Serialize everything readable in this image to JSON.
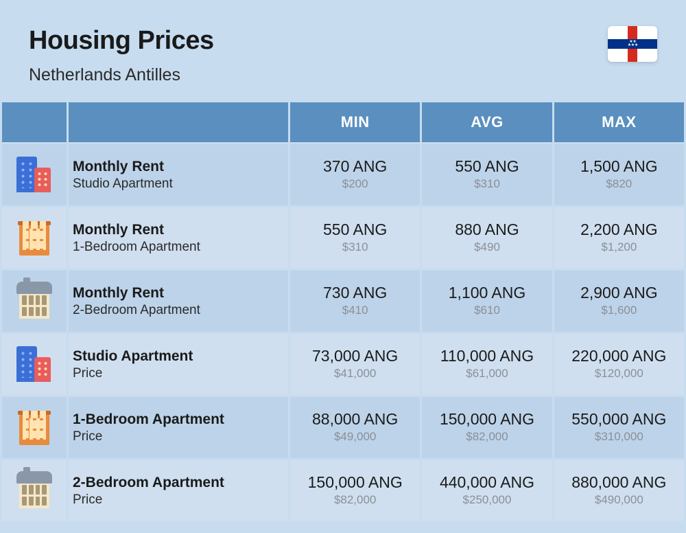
{
  "title": "Housing Prices",
  "subtitle": "Netherlands Antilles",
  "flag": {
    "top_bottom": "#ffffff",
    "band_v": "#d52b1e",
    "band_h": "#003087"
  },
  "columns": {
    "min": "MIN",
    "avg": "AVG",
    "max": "MAX"
  },
  "header_bg": "#5a8fbf",
  "row_bg_a": "#bdd3e9",
  "row_bg_b": "#cfdfef",
  "currency_main": "ANG",
  "currency_sub_prefix": "$",
  "rows": [
    {
      "icon": "tall",
      "title": "Monthly Rent",
      "sub": "Studio Apartment",
      "min": {
        "main": "370 ANG",
        "sub": "$200"
      },
      "avg": {
        "main": "550 ANG",
        "sub": "$310"
      },
      "max": {
        "main": "1,500 ANG",
        "sub": "$820"
      }
    },
    {
      "icon": "brick",
      "title": "Monthly Rent",
      "sub": "1-Bedroom Apartment",
      "min": {
        "main": "550 ANG",
        "sub": "$310"
      },
      "avg": {
        "main": "880 ANG",
        "sub": "$490"
      },
      "max": {
        "main": "2,200 ANG",
        "sub": "$1,200"
      }
    },
    {
      "icon": "house",
      "title": "Monthly Rent",
      "sub": "2-Bedroom Apartment",
      "min": {
        "main": "730 ANG",
        "sub": "$410"
      },
      "avg": {
        "main": "1,100 ANG",
        "sub": "$610"
      },
      "max": {
        "main": "2,900 ANG",
        "sub": "$1,600"
      }
    },
    {
      "icon": "tall",
      "title": "Studio Apartment",
      "sub": "Price",
      "min": {
        "main": "73,000 ANG",
        "sub": "$41,000"
      },
      "avg": {
        "main": "110,000 ANG",
        "sub": "$61,000"
      },
      "max": {
        "main": "220,000 ANG",
        "sub": "$120,000"
      }
    },
    {
      "icon": "brick",
      "title": "1-Bedroom Apartment",
      "sub": "Price",
      "min": {
        "main": "88,000 ANG",
        "sub": "$49,000"
      },
      "avg": {
        "main": "150,000 ANG",
        "sub": "$82,000"
      },
      "max": {
        "main": "550,000 ANG",
        "sub": "$310,000"
      }
    },
    {
      "icon": "house",
      "title": "2-Bedroom Apartment",
      "sub": "Price",
      "min": {
        "main": "150,000 ANG",
        "sub": "$82,000"
      },
      "avg": {
        "main": "440,000 ANG",
        "sub": "$250,000"
      },
      "max": {
        "main": "880,000 ANG",
        "sub": "$490,000"
      }
    }
  ]
}
